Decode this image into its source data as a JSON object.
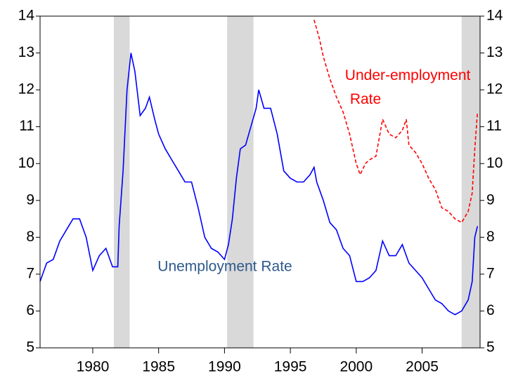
{
  "chart_data": {
    "type": "line",
    "xlim": [
      1976,
      2009.4
    ],
    "xticks": [
      1980,
      1985,
      1990,
      1995,
      2000,
      2005
    ],
    "ylim": [
      5,
      14
    ],
    "yticks": [
      5,
      6,
      7,
      8,
      9,
      10,
      11,
      12,
      13,
      14
    ],
    "y2lim": [
      5,
      14
    ],
    "y2ticks": [
      5,
      6,
      7,
      8,
      9,
      10,
      11,
      12,
      13,
      14
    ],
    "recessions": [
      [
        1981.6,
        1982.8
      ],
      [
        1990.2,
        1992.2
      ],
      [
        2008.0,
        2009.4
      ]
    ],
    "recession_color": "#d9d9d9",
    "series": [
      {
        "name": "Unemployment Rate",
        "color": "#0000ff",
        "label_color": "#2e5a8c",
        "dashed": false,
        "x": [
          1976.0,
          1976.5,
          1977.0,
          1977.5,
          1978.0,
          1978.5,
          1979.0,
          1979.5,
          1980.0,
          1980.5,
          1981.0,
          1981.5,
          1981.9,
          1982.0,
          1982.3,
          1982.6,
          1982.9,
          1983.2,
          1983.6,
          1984.0,
          1984.3,
          1984.7,
          1985.0,
          1985.5,
          1986.0,
          1986.5,
          1987.0,
          1987.5,
          1988.0,
          1988.5,
          1989.0,
          1989.5,
          1990.0,
          1990.3,
          1990.6,
          1990.9,
          1991.2,
          1991.6,
          1992.0,
          1992.4,
          1992.6,
          1993.0,
          1993.5,
          1994.0,
          1994.5,
          1995.0,
          1995.5,
          1996.0,
          1996.5,
          1996.8,
          1997.0,
          1997.5,
          1998.0,
          1998.5,
          1999.0,
          1999.5,
          2000.0,
          2000.5,
          2001.0,
          2001.5,
          2002.0,
          2002.5,
          2003.0,
          2003.5,
          2004.0,
          2004.5,
          2005.0,
          2005.5,
          2006.0,
          2006.5,
          2007.0,
          2007.5,
          2008.0,
          2008.5,
          2008.8,
          2009.0,
          2009.2
        ],
        "values": [
          6.8,
          7.3,
          7.4,
          7.9,
          8.2,
          8.5,
          8.5,
          8.0,
          7.1,
          7.5,
          7.7,
          7.2,
          7.2,
          8.3,
          9.8,
          12.0,
          13.0,
          12.5,
          11.3,
          11.5,
          11.8,
          11.2,
          10.8,
          10.4,
          10.1,
          9.8,
          9.5,
          9.5,
          8.8,
          8.0,
          7.7,
          7.6,
          7.4,
          7.8,
          8.5,
          9.6,
          10.4,
          10.5,
          11.0,
          11.5,
          12.0,
          11.5,
          11.5,
          10.8,
          9.8,
          9.6,
          9.5,
          9.5,
          9.7,
          9.9,
          9.5,
          9.0,
          8.4,
          8.2,
          7.7,
          7.5,
          6.8,
          6.8,
          6.9,
          7.1,
          7.9,
          7.5,
          7.5,
          7.8,
          7.3,
          7.1,
          6.9,
          6.6,
          6.3,
          6.2,
          6.0,
          5.9,
          6.0,
          6.3,
          6.8,
          8.0,
          8.3
        ]
      },
      {
        "name": "Under-employment Rate",
        "color": "#ff0000",
        "label_color": "#ff0000",
        "dashed": true,
        "x": [
          1996.8,
          1997.2,
          1997.5,
          1998.0,
          1998.5,
          1999.0,
          1999.5,
          2000.0,
          2000.3,
          2000.7,
          2001.0,
          2001.5,
          2002.0,
          2002.5,
          2003.0,
          2003.5,
          2003.8,
          2004.0,
          2004.5,
          2005.0,
          2005.5,
          2006.0,
          2006.5,
          2007.0,
          2007.5,
          2008.0,
          2008.5,
          2008.8,
          2009.0,
          2009.2
        ],
        "values": [
          13.9,
          13.4,
          12.9,
          12.3,
          11.8,
          11.4,
          10.8,
          10.0,
          9.7,
          10.0,
          10.1,
          10.2,
          11.2,
          10.8,
          10.7,
          10.9,
          11.2,
          10.5,
          10.3,
          10.0,
          9.6,
          9.3,
          8.8,
          8.7,
          8.5,
          8.4,
          8.7,
          9.2,
          10.4,
          11.4
        ]
      }
    ]
  }
}
